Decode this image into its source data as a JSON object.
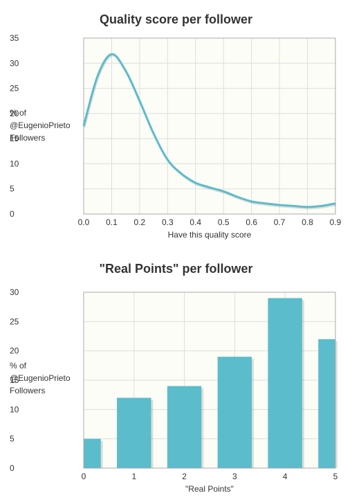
{
  "chart_data": [
    {
      "type": "area",
      "title": "Quality score per follower",
      "xlabel": "Have this quality score",
      "ylabel_lines": [
        "% of",
        "@EugenioPrieto",
        "Followers"
      ],
      "xlim": [
        0,
        0.9
      ],
      "ylim": [
        0,
        35
      ],
      "x_ticks": [
        "0.0",
        "0.1",
        "0.2",
        "0.3",
        "0.4",
        "0.5",
        "0.6",
        "0.7",
        "0.8",
        "0.9"
      ],
      "y_ticks": [
        "0",
        "5",
        "10",
        "15",
        "20",
        "25",
        "30",
        "35"
      ],
      "x": [
        0.0,
        0.05,
        0.1,
        0.15,
        0.2,
        0.25,
        0.3,
        0.35,
        0.4,
        0.45,
        0.5,
        0.55,
        0.6,
        0.65,
        0.7,
        0.75,
        0.8,
        0.85,
        0.9
      ],
      "values": [
        17.5,
        27.5,
        31.8,
        28.5,
        22.5,
        16.0,
        10.8,
        8.0,
        6.2,
        5.3,
        4.5,
        3.4,
        2.5,
        2.1,
        1.8,
        1.6,
        1.4,
        1.6,
        2.1
      ],
      "grid": true,
      "line_color": "#5bbccc"
    },
    {
      "type": "bar",
      "title": "\"Real Points\" per follower",
      "xlabel": "\"Real Points\"",
      "ylabel_lines": [
        "% of",
        "@EugenioPrieto",
        "Followers"
      ],
      "xlim": [
        0,
        5
      ],
      "ylim": [
        0,
        30
      ],
      "x_ticks": [
        "0",
        "1",
        "2",
        "3",
        "4",
        "5"
      ],
      "y_ticks": [
        "0",
        "5",
        "10",
        "15",
        "20",
        "25",
        "30"
      ],
      "categories": [
        "0",
        "1",
        "2",
        "3",
        "4",
        "5"
      ],
      "values": [
        5,
        12,
        14,
        19,
        29,
        22
      ],
      "grid": true,
      "bar_color": "#5bbccc"
    }
  ]
}
